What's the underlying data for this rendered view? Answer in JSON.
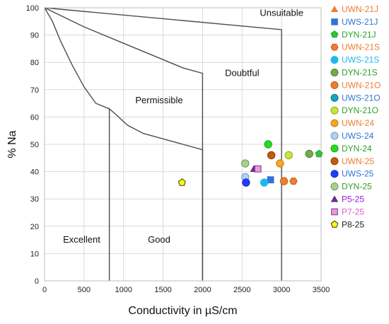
{
  "chart_data": {
    "type": "scatter",
    "xlabel": "Conductivity in µS/cm",
    "ylabel": "% Na",
    "xlim": [
      0,
      3500
    ],
    "ylim": [
      0,
      100
    ],
    "xticks": [
      0,
      500,
      1000,
      1500,
      2000,
      2500,
      3000,
      3500
    ],
    "yticks": [
      0,
      10,
      20,
      30,
      40,
      50,
      60,
      70,
      80,
      90,
      100
    ],
    "grid": true,
    "legend_position": "right",
    "boundaries": [
      {
        "name": "excellent-good",
        "points": [
          [
            820,
            0
          ],
          [
            820,
            63
          ],
          [
            900,
            61
          ],
          [
            1050,
            57
          ],
          [
            1250,
            54
          ],
          [
            1500,
            52
          ],
          [
            1750,
            50
          ],
          [
            2000,
            48
          ]
        ]
      },
      {
        "name": "good-permissible-lower",
        "points": [
          [
            2000,
            48
          ],
          [
            2000,
            0
          ]
        ]
      },
      {
        "name": "permissible-lower-curve",
        "points": [
          [
            0,
            100
          ],
          [
            100,
            95
          ],
          [
            200,
            88
          ],
          [
            350,
            79
          ],
          [
            500,
            71
          ],
          [
            650,
            65
          ],
          [
            820,
            63
          ]
        ]
      },
      {
        "name": "permissible-doubtful",
        "points": [
          [
            0,
            100
          ],
          [
            500,
            93
          ],
          [
            1000,
            87
          ],
          [
            1500,
            81
          ],
          [
            1750,
            78
          ],
          [
            2000,
            76
          ],
          [
            2000,
            0
          ]
        ]
      },
      {
        "name": "doubtful-unsuitable",
        "points": [
          [
            0,
            100
          ],
          [
            3000,
            92
          ],
          [
            3000,
            0
          ]
        ]
      }
    ],
    "region_labels": [
      {
        "text": "Unsuitable",
        "x": 3000,
        "y": 97
      },
      {
        "text": "Doubtful",
        "x": 2500,
        "y": 75
      },
      {
        "text": "Permissible",
        "x": 1450,
        "y": 65
      },
      {
        "text": "Excellent",
        "x": 470,
        "y": 14
      },
      {
        "text": "Good",
        "x": 1450,
        "y": 14
      }
    ],
    "series": [
      {
        "name": "UWN-21J",
        "marker": "triangle",
        "color": "#ed7d31",
        "edge": "#ed7d31",
        "points": []
      },
      {
        "name": "UWS-21J",
        "marker": "square",
        "color": "#2e75d6",
        "edge": "#2e75d6",
        "points": [
          [
            2860,
            37
          ]
        ]
      },
      {
        "name": "DYN-21J",
        "marker": "pentagon",
        "color": "#33c141",
        "edge": "#2ca02c",
        "points": [
          [
            3550,
            46.5
          ]
        ]
      },
      {
        "name": "UWN-21S",
        "marker": "hexagon",
        "color": "#ed7d31",
        "edge": "#c65a18",
        "points": [
          [
            3150,
            36.5
          ]
        ]
      },
      {
        "name": "UWS-21S",
        "marker": "circle",
        "color": "#1fb7f0",
        "edge": "#1fb7f0",
        "points": [
          [
            2780,
            36
          ]
        ]
      },
      {
        "name": "DYN-21S",
        "marker": "circle",
        "color": "#70ad47",
        "edge": "#507e32",
        "points": [
          [
            3350,
            46.5
          ]
        ]
      },
      {
        "name": "UWN-21O",
        "marker": "circle",
        "color": "#ed7d31",
        "edge": "#c65a18",
        "points": [
          [
            3030,
            36.5
          ]
        ]
      },
      {
        "name": "UWS-21O",
        "marker": "circle",
        "color": "#17a5b8",
        "edge": "#117d8c",
        "points": []
      },
      {
        "name": "DYN-21O",
        "marker": "circle",
        "color": "#c9e63b",
        "edge": "#8aa61e",
        "points": [
          [
            3090,
            46
          ]
        ]
      },
      {
        "name": "UWN-24",
        "marker": "circle",
        "color": "#f5a623",
        "edge": "#c27c0e",
        "points": [
          [
            2980,
            43
          ]
        ]
      },
      {
        "name": "UWS-24",
        "marker": "circle",
        "color": "#b6d0f2",
        "edge": "#6f96c9",
        "points": [
          [
            2540,
            38
          ]
        ]
      },
      {
        "name": "DYN-24",
        "marker": "circle",
        "color": "#22e01f",
        "edge": "#18a116",
        "points": [
          [
            2830,
            50
          ]
        ]
      },
      {
        "name": "UWN-25",
        "marker": "circle",
        "color": "#c55a11",
        "edge": "#8f3f0b",
        "points": [
          [
            2870,
            46
          ]
        ]
      },
      {
        "name": "UWS-25",
        "marker": "circle",
        "color": "#1f3cff",
        "edge": "#1a2fc2",
        "points": [
          [
            2550,
            36
          ]
        ]
      },
      {
        "name": "DYN-25",
        "marker": "circle",
        "color": "#a9d18e",
        "edge": "#6f9356",
        "points": [
          [
            2540,
            43
          ]
        ]
      },
      {
        "name": "P5-25",
        "marker": "triangle",
        "color": "#7030a0",
        "edge": "#4b1f6d",
        "points": [
          [
            2650,
            41
          ]
        ]
      },
      {
        "name": "P7-25",
        "marker": "square",
        "color": "#ec9ad8",
        "edge": "#7030a0",
        "points": [
          [
            2700,
            41
          ]
        ]
      },
      {
        "name": "P8-25",
        "marker": "pentagon",
        "color": "#ffff00",
        "edge": "#333333",
        "points": [
          [
            1740,
            36
          ]
        ]
      }
    ],
    "legend_text_colors": [
      "#ed7d31",
      "#2e75d6",
      "#2ca02c",
      "#ed7d31",
      "#1fb7f0",
      "#2ca02c",
      "#ed7d31",
      "#2e75d6",
      "#2ca02c",
      "#ed7d31",
      "#2e75d6",
      "#2ca02c",
      "#ed7d31",
      "#2e75d6",
      "#2ca02c",
      "#9b19d6",
      "#e05fc8",
      "#222222"
    ]
  }
}
